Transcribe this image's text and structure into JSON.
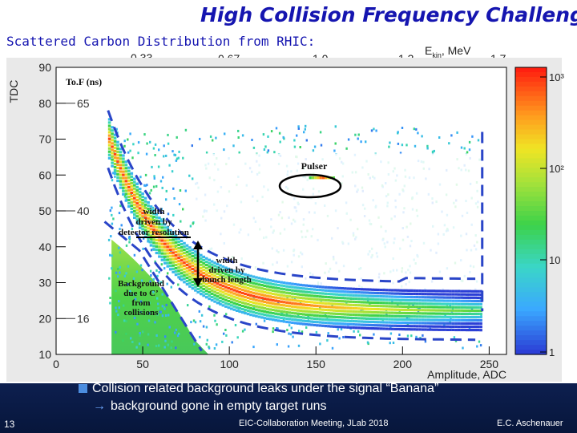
{
  "slide": {
    "title": "High Collision Frequency Challenge",
    "subtitle": "Scattered Carbon Distribution from RHIC:",
    "ekin_label": "E",
    "ekin_sub": "kin",
    "ekin_unit": ", MeV",
    "ekin_ticks": [
      "0.33",
      "0.67",
      "1.0",
      "1.3",
      "1.7"
    ],
    "bullet": "Collision related background leaks under the signal “Banana”",
    "sub_bullet": "background gone in empty target runs",
    "slide_number": "13",
    "meeting": "EIC-Collaboration Meeting, JLab 2018",
    "author": "E.C. Aschenauer"
  },
  "chart_data": {
    "type": "heatmap",
    "title": "",
    "xlabel": "Amplitude, ADC",
    "ylabel": "TDC",
    "xlim": [
      0,
      260
    ],
    "ylim": [
      10,
      90
    ],
    "x_ticks": [
      "0",
      "50",
      "100",
      "150",
      "200",
      "250"
    ],
    "y_ticks": [
      "10",
      "20",
      "30",
      "40",
      "50",
      "60",
      "70",
      "80",
      "90"
    ],
    "colorbar": {
      "scale": "log",
      "tick_labels": [
        "1",
        "10",
        "10²",
        "10³"
      ]
    },
    "tof_label": "To.F (ns)",
    "tof_ticks": [
      {
        "tdc": 80,
        "label": "65"
      },
      {
        "tdc": 50,
        "label": "40"
      },
      {
        "tdc": 20,
        "label": "16"
      }
    ],
    "annotations": {
      "pulser": "Pulser",
      "width_detector": [
        "width",
        "driven by",
        "detector resolution"
      ],
      "width_bunch": [
        "width",
        "driven by",
        "bunch length"
      ],
      "background": [
        "Background",
        "due to C’",
        "from",
        "collisions"
      ]
    }
  }
}
